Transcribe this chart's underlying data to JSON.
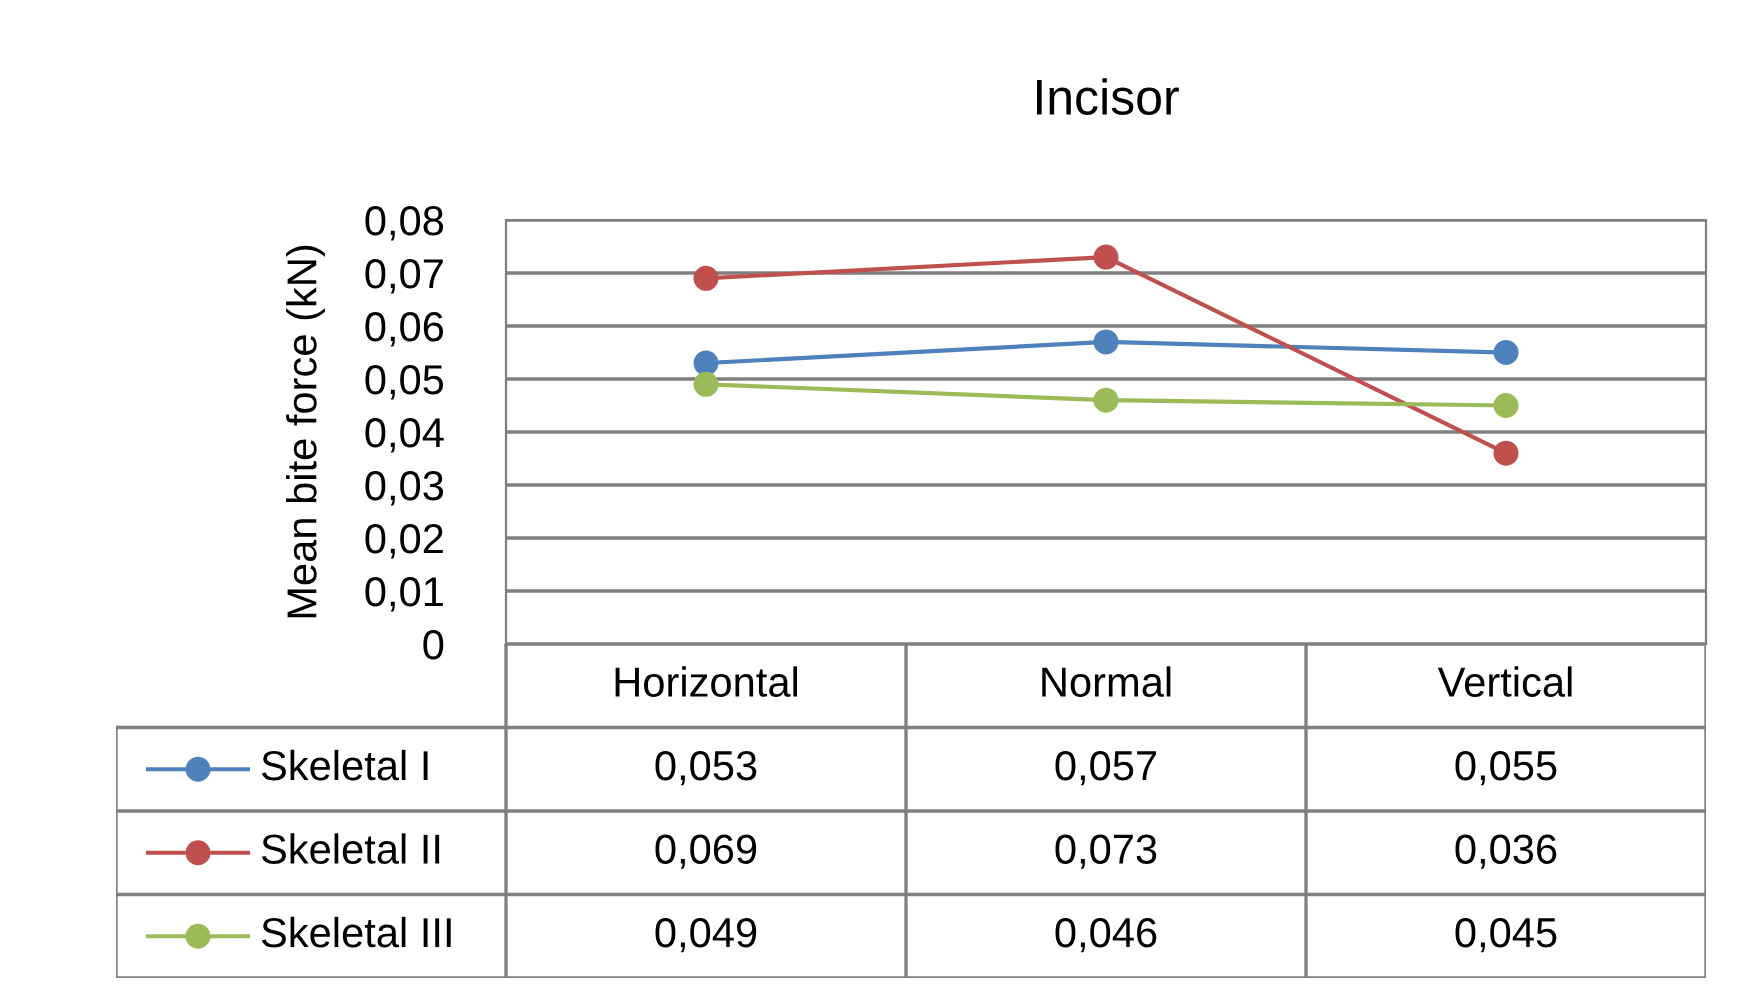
{
  "chart_data": {
    "type": "line",
    "title": "Incisor",
    "ylabel": "Mean bite force (kN)",
    "categories": [
      "Horizontal",
      "Normal",
      "Vertical"
    ],
    "series": [
      {
        "name": "Skeletal I",
        "color": "#4f81bd",
        "values": [
          0.053,
          0.057,
          0.055
        ],
        "value_labels": [
          "0,053",
          "0,057",
          "0,055"
        ]
      },
      {
        "name": "Skeletal II",
        "color": "#c0504d",
        "values": [
          0.069,
          0.073,
          0.036
        ],
        "value_labels": [
          "0,069",
          "0,073",
          "0,036"
        ]
      },
      {
        "name": "Skeletal III",
        "color": "#9bbb59",
        "values": [
          0.049,
          0.046,
          0.045
        ],
        "value_labels": [
          "0,049",
          "0,046",
          "0,045"
        ]
      }
    ],
    "ylim": [
      0,
      0.08
    ],
    "yticks": [
      0,
      {
        "value": 0.01,
        "label": "0,01"
      },
      {
        "value": 0.02,
        "label": "0,02"
      },
      {
        "value": 0.03,
        "label": "0,03"
      },
      {
        "value": 0.04,
        "label": "0,04"
      },
      {
        "value": 0.05,
        "label": "0,05"
      },
      {
        "value": 0.06,
        "label": "0,06"
      },
      {
        "value": 0.07,
        "label": "0,07"
      },
      {
        "value": 0.08,
        "label": "0,08"
      }
    ],
    "grid": "y",
    "legend": "bottom",
    "marker": "circle",
    "line_style": "solid"
  }
}
